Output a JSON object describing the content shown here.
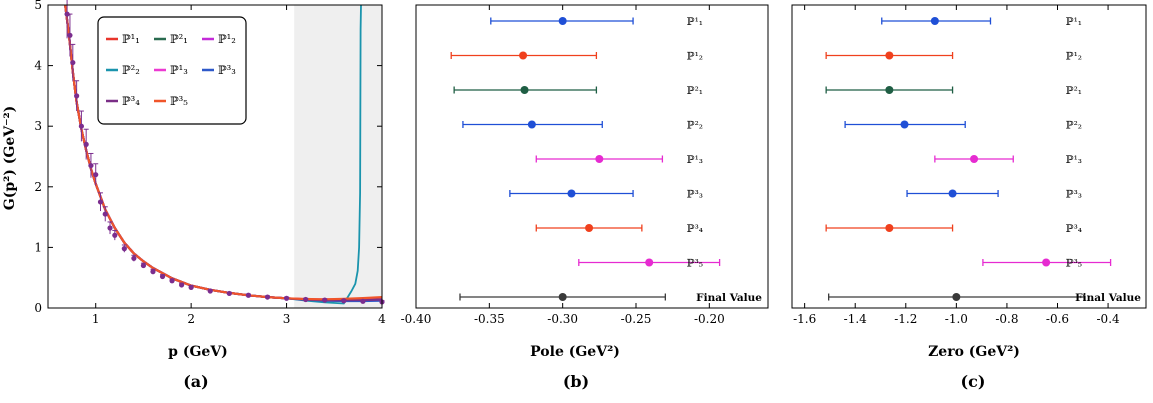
{
  "figure_labels": {
    "a": "(a)",
    "b": "(b)",
    "c": "(c)"
  },
  "chart_data": [
    {
      "type": "line",
      "panel": "a",
      "xlabel": "p (GeV)",
      "ylabel": "G(p²) (GeV⁻²)",
      "xlim": [
        0.5,
        4.0
      ],
      "ylim": [
        0,
        5
      ],
      "xticks": [
        "1",
        "2",
        "3",
        "4"
      ],
      "yticks": [
        "0",
        "1",
        "2",
        "3",
        "4",
        "5"
      ],
      "shaded_region_x": [
        3.08,
        4.0
      ],
      "grid": false,
      "legend_position": "top-left",
      "lattice_points": {
        "color": "#7b2d8e",
        "x": [
          0.7,
          0.73,
          0.76,
          0.8,
          0.85,
          0.9,
          0.95,
          1.0,
          1.05,
          1.1,
          1.15,
          1.2,
          1.3,
          1.4,
          1.5,
          1.6,
          1.7,
          1.8,
          1.9,
          2.0,
          2.2,
          2.4,
          2.6,
          2.8,
          3.0,
          3.2,
          3.4,
          3.6,
          3.8,
          4.0
        ],
        "y": [
          4.85,
          4.5,
          4.05,
          3.5,
          3.0,
          2.7,
          2.35,
          2.2,
          1.75,
          1.55,
          1.32,
          1.2,
          0.98,
          0.82,
          0.7,
          0.6,
          0.52,
          0.45,
          0.38,
          0.34,
          0.28,
          0.24,
          0.21,
          0.18,
          0.16,
          0.14,
          0.13,
          0.12,
          0.11,
          0.1
        ],
        "yerr": [
          0.4,
          0.35,
          0.3,
          0.25,
          0.25,
          0.25,
          0.2,
          0.18,
          0.15,
          0.12,
          0.1,
          0.08,
          0.06,
          0.05,
          0.04,
          0.04,
          0.03,
          0.03,
          0.03,
          0.03,
          0.02,
          0.02,
          0.02,
          0.02,
          0.02,
          0.02,
          0.02,
          0.02,
          0.02,
          0.02
        ]
      },
      "series": [
        {
          "name": "ℙ¹₁",
          "color": "#e8352b",
          "pole_x": null
        },
        {
          "name": "ℙ²₁",
          "color": "#2a6b4f",
          "pole_x": null
        },
        {
          "name": "ℙ¹₂",
          "color": "#c42bd8",
          "pole_x": null
        },
        {
          "name": "ℙ²₂",
          "color": "#1a94ad",
          "pole_x": 3.78
        },
        {
          "name": "ℙ¹₃",
          "color": "#ec3ad2",
          "pole_x": null
        },
        {
          "name": "ℙ³₃",
          "color": "#2e59c9",
          "pole_x": null
        },
        {
          "name": "ℙ³₄",
          "color": "#7a2e86",
          "pole_x": null
        },
        {
          "name": "ℙ³₅",
          "color": "#f0552a",
          "pole_x": null
        }
      ],
      "curve": {
        "x": [
          0.68,
          0.72,
          0.76,
          0.8,
          0.85,
          0.9,
          0.95,
          1.0,
          1.1,
          1.2,
          1.3,
          1.4,
          1.5,
          1.6,
          1.8,
          2.0,
          2.2,
          2.4,
          2.6,
          2.8,
          3.0,
          3.2,
          3.4,
          3.6,
          3.8,
          4.0
        ],
        "y": [
          5.3,
          4.5,
          3.9,
          3.4,
          2.95,
          2.6,
          2.3,
          2.05,
          1.62,
          1.32,
          1.08,
          0.9,
          0.77,
          0.66,
          0.49,
          0.37,
          0.3,
          0.25,
          0.21,
          0.18,
          0.16,
          0.14,
          0.12,
          0.11,
          0.1,
          0.09
        ]
      },
      "curve_color": "#e8352b",
      "curve_tail_y": {
        "ℙ¹₁": 0.16,
        "ℙ²₁": 0.13,
        "ℙ¹₂": 0.15,
        "ℙ²₂": 0.05,
        "ℙ¹₃": 0.17,
        "ℙ³₃": 0.12,
        "ℙ³₄": 0.14,
        "ℙ³₅": 0.18
      }
    },
    {
      "type": "errorbar",
      "panel": "b",
      "xlabel": "Pole (GeV²)",
      "xlim": [
        -0.4,
        -0.16
      ],
      "xticks": [
        -0.4,
        -0.35,
        -0.3,
        -0.25,
        -0.2
      ],
      "xtick_labels": [
        "-0.40",
        "-0.35",
        "-0.30",
        "-0.25",
        "-0.20"
      ],
      "rows": [
        {
          "label": "ℙ¹₁",
          "value": -0.3,
          "lo": -0.349,
          "hi": -0.252,
          "color": "#1f4fd6"
        },
        {
          "label": "ℙ¹₂",
          "value": -0.327,
          "lo": -0.376,
          "hi": -0.277,
          "color": "#f0401d"
        },
        {
          "label": "ℙ²₁",
          "value": -0.326,
          "lo": -0.374,
          "hi": -0.277,
          "color": "#1f5e44"
        },
        {
          "label": "ℙ²₂",
          "value": -0.321,
          "lo": -0.368,
          "hi": -0.273,
          "color": "#1f4fd6"
        },
        {
          "label": "ℙ¹₃",
          "value": -0.275,
          "lo": -0.318,
          "hi": -0.232,
          "color": "#e62bd1"
        },
        {
          "label": "ℙ³₃",
          "value": -0.294,
          "lo": -0.336,
          "hi": -0.252,
          "color": "#1f4fd6"
        },
        {
          "label": "ℙ³₄",
          "value": -0.282,
          "lo": -0.318,
          "hi": -0.246,
          "color": "#f0401d"
        },
        {
          "label": "ℙ³₅",
          "value": -0.241,
          "lo": -0.289,
          "hi": -0.193,
          "color": "#e62bd1"
        },
        {
          "label": "Final Value",
          "value": -0.3,
          "lo": -0.37,
          "hi": -0.23,
          "color": "#3a3a3a",
          "final": true
        }
      ]
    },
    {
      "type": "errorbar",
      "panel": "c",
      "xlabel": "Zero (GeV²)",
      "xlim": [
        -1.65,
        -0.25
      ],
      "xticks": [
        -1.6,
        -1.4,
        -1.2,
        -1.0,
        -0.8,
        -0.6,
        -0.4
      ],
      "xtick_labels": [
        "-1.6",
        "-1.4",
        "-1.2",
        "-1.0",
        "-0.8",
        "-0.6",
        "-0.4"
      ],
      "rows": [
        {
          "label": "ℙ¹₁",
          "value": -1.085,
          "lo": -1.295,
          "hi": -0.865,
          "color": "#1f4fd6"
        },
        {
          "label": "ℙ¹₂",
          "value": -1.265,
          "lo": -1.515,
          "hi": -1.015,
          "color": "#f0401d"
        },
        {
          "label": "ℙ²₁",
          "value": -1.265,
          "lo": -1.515,
          "hi": -1.015,
          "color": "#1f5e44"
        },
        {
          "label": "ℙ²₂",
          "value": -1.205,
          "lo": -1.44,
          "hi": -0.965,
          "color": "#1f4fd6"
        },
        {
          "label": "ℙ¹₃",
          "value": -0.93,
          "lo": -1.085,
          "hi": -0.775,
          "color": "#e62bd1"
        },
        {
          "label": "ℙ³₃",
          "value": -1.015,
          "lo": -1.195,
          "hi": -0.835,
          "color": "#1f4fd6"
        },
        {
          "label": "ℙ³₄",
          "value": -1.265,
          "lo": -1.515,
          "hi": -1.015,
          "color": "#f0401d"
        },
        {
          "label": "ℙ³₅",
          "value": -0.645,
          "lo": -0.895,
          "hi": -0.39,
          "color": "#e62bd1"
        },
        {
          "label": "Final Value",
          "value": -1.0,
          "lo": -1.505,
          "hi": -0.495,
          "color": "#3a3a3a",
          "final": true
        }
      ]
    }
  ]
}
